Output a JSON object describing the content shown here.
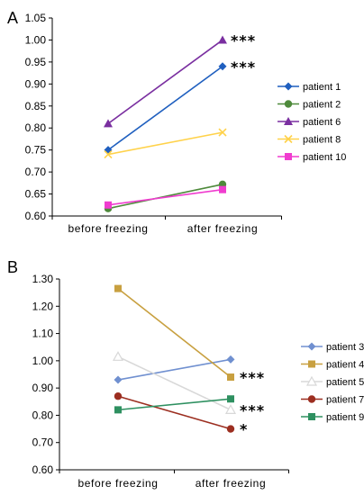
{
  "chart_data": [
    {
      "type": "line",
      "panel_label": "A",
      "categories": [
        "before freezing",
        "after freezing"
      ],
      "ylim": [
        0.6,
        1.05
      ],
      "ytick_labels": [
        "0.60",
        "0.65",
        "0.70",
        "0.75",
        "0.80",
        "0.85",
        "0.90",
        "0.95",
        "1.00",
        "1.05"
      ],
      "series": [
        {
          "name": "patient 1",
          "values": [
            0.75,
            0.94
          ],
          "color": "#1f5fbf",
          "marker": "diamond"
        },
        {
          "name": "patient 2",
          "values": [
            0.617,
            0.672
          ],
          "color": "#4e8a3b",
          "marker": "circle"
        },
        {
          "name": "patient 6",
          "values": [
            0.81,
            1.0
          ],
          "color": "#7a2fa0",
          "marker": "triangle"
        },
        {
          "name": "patient 8",
          "values": [
            0.74,
            0.79
          ],
          "color": "#ffd24a",
          "marker": "x"
        },
        {
          "name": "patient 10",
          "values": [
            0.625,
            0.66
          ],
          "color": "#f03ccf",
          "marker": "square"
        }
      ],
      "annotations": [
        {
          "text": "***",
          "x": "after freezing",
          "y": 1.0
        },
        {
          "text": "***",
          "x": "after freezing",
          "y": 0.94
        }
      ],
      "legend_position": "right"
    },
    {
      "type": "line",
      "panel_label": "B",
      "categories": [
        "before freezing",
        "after freezing"
      ],
      "ylim": [
        0.6,
        1.3
      ],
      "ytick_labels": [
        "0.60",
        "0.70",
        "0.80",
        "0.90",
        "1.00",
        "1.10",
        "1.20",
        "1.30"
      ],
      "series": [
        {
          "name": "patient 3",
          "values": [
            0.93,
            1.005
          ],
          "color": "#7090d0",
          "marker": "diamond"
        },
        {
          "name": "patient 4",
          "values": [
            1.265,
            0.94
          ],
          "color": "#c8a040",
          "marker": "square"
        },
        {
          "name": "patient 5",
          "values": [
            1.015,
            0.82
          ],
          "color": "#d8d8d8",
          "marker": "triangle-open"
        },
        {
          "name": "patient 7",
          "values": [
            0.87,
            0.75
          ],
          "color": "#9c2e20",
          "marker": "circle"
        },
        {
          "name": "patient 9",
          "values": [
            0.82,
            0.86
          ],
          "color": "#2e9060",
          "marker": "square"
        }
      ],
      "annotations": [
        {
          "text": "***",
          "x": "after freezing",
          "y": 0.94
        },
        {
          "text": "***",
          "x": "after freezing",
          "y": 0.82
        },
        {
          "text": "*",
          "x": "after freezing",
          "y": 0.75
        }
      ],
      "legend_position": "right"
    }
  ]
}
